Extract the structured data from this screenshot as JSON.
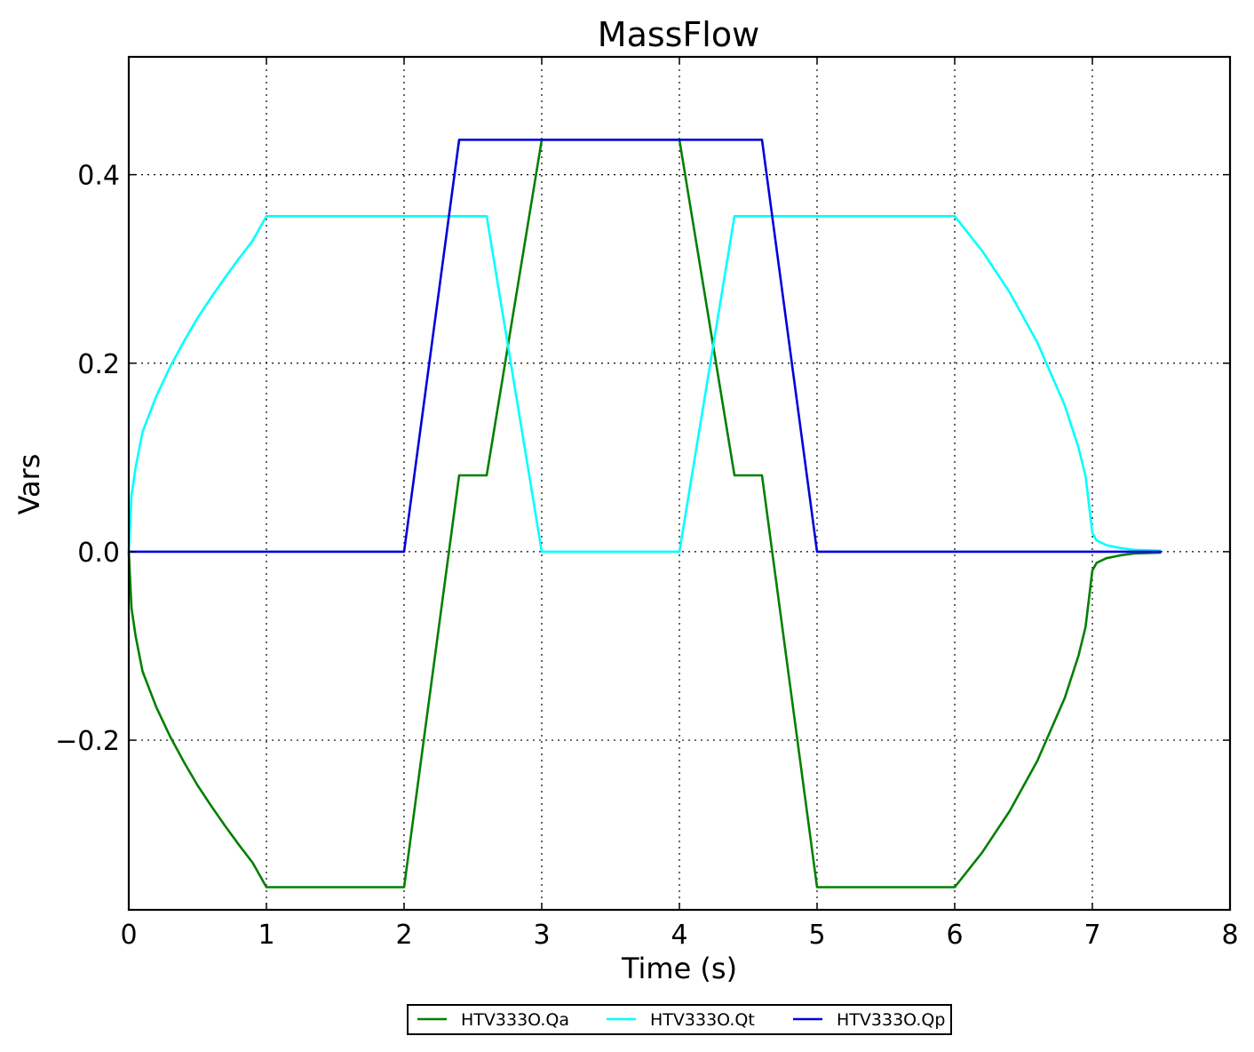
{
  "chart_data": {
    "type": "line",
    "title": "MassFlow",
    "xlabel": "Time (s)",
    "ylabel": "Vars",
    "xlim": [
      0,
      8
    ],
    "ylim": [
      -0.38,
      0.525
    ],
    "xticks": [
      0,
      1,
      2,
      3,
      4,
      5,
      6,
      7,
      8
    ],
    "xtick_labels": [
      "0",
      "1",
      "2",
      "3",
      "4",
      "5",
      "6",
      "7",
      "8"
    ],
    "yticks": [
      -0.2,
      0.0,
      0.2,
      0.4
    ],
    "ytick_labels": [
      "−0.2",
      "0.0",
      "0.2",
      "0.4"
    ],
    "grid": true,
    "legend_position": "bottom-center",
    "series": [
      {
        "name": "HTV333O.Qa",
        "color": "#008000",
        "points": [
          [
            0,
            0
          ],
          [
            0.02,
            -0.06
          ],
          [
            0.05,
            -0.09
          ],
          [
            0.1,
            -0.127
          ],
          [
            0.2,
            -0.165
          ],
          [
            0.3,
            -0.196
          ],
          [
            0.4,
            -0.223
          ],
          [
            0.5,
            -0.248
          ],
          [
            0.6,
            -0.27
          ],
          [
            0.7,
            -0.291
          ],
          [
            0.8,
            -0.311
          ],
          [
            0.9,
            -0.33
          ],
          [
            1.0,
            -0.356
          ],
          [
            2.0,
            -0.356
          ],
          [
            2.4,
            0.081
          ],
          [
            2.6,
            0.081
          ],
          [
            3.0,
            0.437
          ],
          [
            4.0,
            0.437
          ],
          [
            4.4,
            0.081
          ],
          [
            4.6,
            0.081
          ],
          [
            5.0,
            -0.356
          ],
          [
            6.0,
            -0.356
          ],
          [
            6.2,
            -0.319
          ],
          [
            6.4,
            -0.275
          ],
          [
            6.6,
            -0.222
          ],
          [
            6.8,
            -0.155
          ],
          [
            6.9,
            -0.11
          ],
          [
            6.95,
            -0.08
          ],
          [
            7.0,
            -0.02
          ],
          [
            7.03,
            -0.012
          ],
          [
            7.1,
            -0.007
          ],
          [
            7.2,
            -0.004
          ],
          [
            7.3,
            -0.002
          ],
          [
            7.5,
            -0.001
          ]
        ]
      },
      {
        "name": "HTV333O.Qt",
        "color": "#00ffff",
        "points": [
          [
            0,
            0
          ],
          [
            0.02,
            0.06
          ],
          [
            0.05,
            0.09
          ],
          [
            0.1,
            0.127
          ],
          [
            0.2,
            0.165
          ],
          [
            0.3,
            0.196
          ],
          [
            0.4,
            0.223
          ],
          [
            0.5,
            0.248
          ],
          [
            0.6,
            0.27
          ],
          [
            0.7,
            0.291
          ],
          [
            0.8,
            0.311
          ],
          [
            0.9,
            0.33
          ],
          [
            1.0,
            0.356
          ],
          [
            2.6,
            0.356
          ],
          [
            3.0,
            0.0
          ],
          [
            4.0,
            0.0
          ],
          [
            4.4,
            0.356
          ],
          [
            6.0,
            0.356
          ],
          [
            6.2,
            0.319
          ],
          [
            6.4,
            0.275
          ],
          [
            6.6,
            0.222
          ],
          [
            6.8,
            0.155
          ],
          [
            6.9,
            0.11
          ],
          [
            6.95,
            0.08
          ],
          [
            7.0,
            0.02
          ],
          [
            7.03,
            0.012
          ],
          [
            7.1,
            0.007
          ],
          [
            7.2,
            0.004
          ],
          [
            7.3,
            0.002
          ],
          [
            7.5,
            0.001
          ]
        ]
      },
      {
        "name": "HTV333O.Qp",
        "color": "#0000dd",
        "points": [
          [
            0,
            0
          ],
          [
            2.0,
            0.0
          ],
          [
            2.4,
            0.437
          ],
          [
            4.6,
            0.437
          ],
          [
            5.0,
            0.0
          ],
          [
            7.5,
            0.0
          ]
        ]
      }
    ]
  }
}
